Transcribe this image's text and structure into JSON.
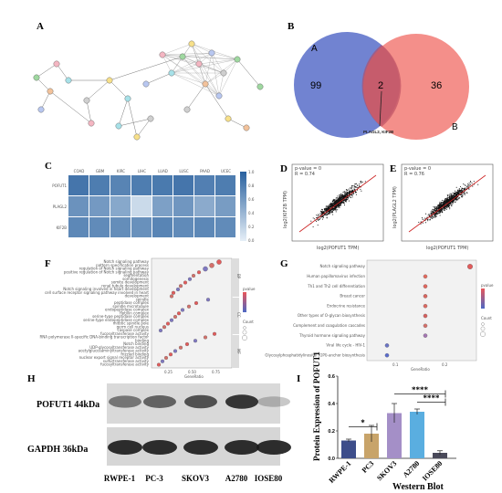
{
  "panels": {
    "a": "A",
    "b": "B",
    "c": "C",
    "d": "D",
    "e": "E",
    "f": "F",
    "g": "G",
    "h": "H",
    "i": "I"
  },
  "venn": {
    "set_a": "A",
    "set_b": "B",
    "left_only": "99",
    "overlap": "2",
    "right_only": "36",
    "overlap_genes": "PLAGL2, KIF2B",
    "color_a": "#5b73c8",
    "color_b": "#f0736e"
  },
  "heatmap": {
    "columns": [
      "COAD",
      "GBM",
      "KIRC",
      "LIHC",
      "LUAD",
      "LUSC",
      "PAAD",
      "UCEC"
    ],
    "rows": [
      "POFUT1",
      "PLAGL2",
      "KIF2B"
    ],
    "values": [
      [
        0.85,
        0.8,
        0.75,
        0.8,
        0.82,
        0.85,
        0.78,
        0.8
      ],
      [
        0.65,
        0.6,
        0.5,
        0.15,
        0.55,
        0.62,
        0.48,
        0.58
      ],
      [
        0.72,
        0.7,
        0.68,
        0.66,
        0.74,
        0.7,
        0.72,
        0.7
      ]
    ],
    "scale_ticks": [
      "1.0",
      "0.8",
      "0.6",
      "0.4",
      "0.2",
      "0.0"
    ]
  },
  "scatter_d": {
    "pvalue": "p-value = 0",
    "r": "R = 0.74",
    "xlabel": "log2(POFUT1 TPM)",
    "ylabel": "log2(KIF2B TPM)"
  },
  "scatter_e": {
    "pvalue": "p-value = 0",
    "r": "R = 0.76",
    "xlabel": "log2(POFUT1 TPM)",
    "ylabel": "log2(PLAGL2 TPM)"
  },
  "go_dot": {
    "terms": [
      "Notch signaling pathway",
      "pattern specification process",
      "regulation of Notch signaling pathway",
      "positive regulation of Notch signaling pathway",
      "segmentation",
      "somitogenesis",
      "somite development",
      "renal tubule development",
      "Notch signaling involved in heart development",
      "cell surface receptor signaling pathway involved in heart",
      "development",
      "spindle",
      "peptidase complex",
      "spindle microtubule",
      "endopeptidase complex",
      "flotillin complex",
      "serine-type peptidase complex",
      "serine-type endopeptidase complex",
      "mitotic spindle pole",
      "germ cell nucleus",
      "caspase complex",
      "fucosyltransferase activity",
      "RNA polymerase II-specific DNA-binding transcription factor",
      "binding",
      "Notch binding",
      "UDP-glycosyltransferase activity",
      "acetylglucosaminyltransferase activity",
      "frizzled binding",
      "nuclear export signal receptor activity",
      "sulfurtransferase activity",
      "fucosyltransferase activity"
    ],
    "xticks": [
      "0.25",
      "0.50",
      "0.75"
    ],
    "xlabel": "GeneRatio",
    "sections": [
      "BP",
      "CC",
      "MF"
    ],
    "legend_title_color": "pvalue",
    "legend_title_size": "Count"
  },
  "kegg_dot": {
    "terms": [
      "Notch signaling pathway",
      "Human papillomavirus infection",
      "Th1 and Th2 cell differentiation",
      "Breast cancer",
      "Endocrine resistance",
      "Other types of O-glycan biosynthesis",
      "Complement and coagulation cascades",
      "Thyroid hormone signaling pathway",
      "Viral life cycle - HIV-1",
      "Glycosylphosphatidylinositol (GPI)-anchor biosynthesis"
    ],
    "xticks": [
      "0.1",
      "0.2"
    ],
    "xlabel": "GeneRatio",
    "legend_title_color": "pvalue",
    "legend_title_size": "Count"
  },
  "western": {
    "bands": [
      {
        "label": "POFUT1 44kDa"
      },
      {
        "label": "GAPDH 36kDa"
      }
    ],
    "lanes": [
      "RWPE-1",
      "PC-3",
      "SKOV3",
      "A2780",
      "IOSE80"
    ]
  },
  "chart_data": {
    "type": "bar",
    "categories": [
      "RWPE-1",
      "PC3",
      "SKOV3",
      "A2780",
      "IOSE80"
    ],
    "values": [
      0.13,
      0.18,
      0.33,
      0.34,
      0.04
    ],
    "errors": [
      0.01,
      0.06,
      0.07,
      0.02,
      0.015
    ],
    "colors": [
      "#3d4d8a",
      "#c8a46a",
      "#a48fc7",
      "#5aaee0",
      "#4a4a5a"
    ],
    "ylabel": "Protein Expression of POFUT1",
    "xlabel": "Western Blot",
    "ylim": [
      0,
      0.6
    ],
    "yticks": [
      "0.0",
      "0.2",
      "0.4",
      "0.6"
    ],
    "annotations": [
      "*",
      "****",
      "****"
    ]
  }
}
